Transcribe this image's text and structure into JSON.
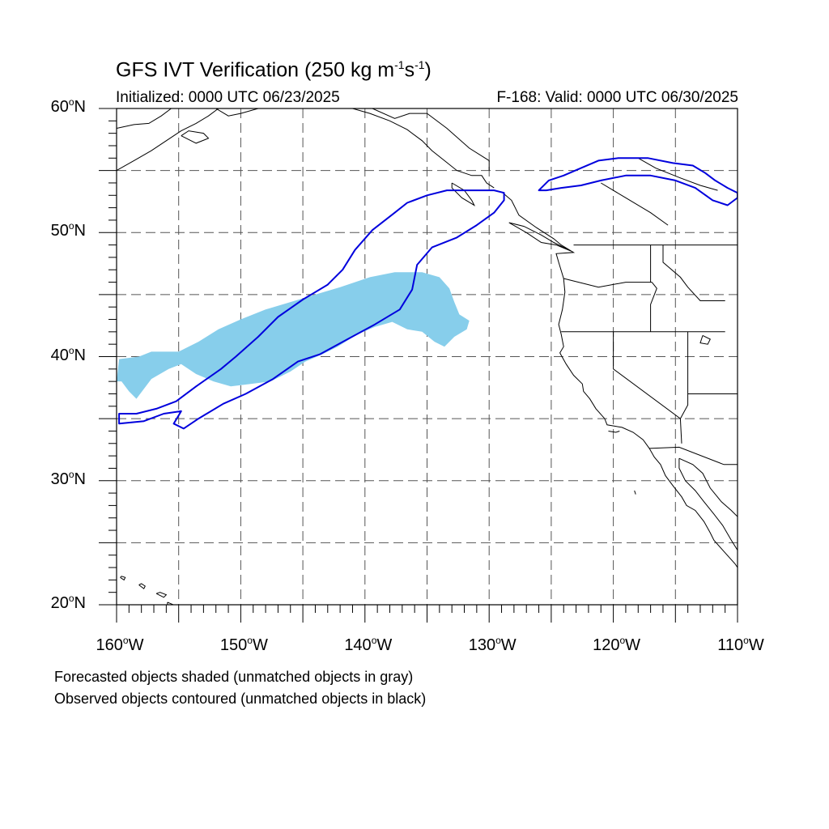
{
  "title": {
    "main": "GFS IVT Verification (250 kg m",
    "exp1": "-1",
    "mid": "s",
    "exp2": "-1",
    "end": ")"
  },
  "subtitle": {
    "left": "Initialized: 0000 UTC 06/23/2025",
    "right": "F-168: Valid: 0000 UTC 06/30/2025"
  },
  "map_extent": {
    "lon": [
      -160,
      -110
    ],
    "lat": [
      20,
      60
    ]
  },
  "lat_labels": [
    {
      "value": 60,
      "text": "60",
      "suffix": "N"
    },
    {
      "value": 50,
      "text": "50",
      "suffix": "N"
    },
    {
      "value": 40,
      "text": "40",
      "suffix": "N"
    },
    {
      "value": 30,
      "text": "30",
      "suffix": "N"
    },
    {
      "value": 20,
      "text": "20",
      "suffix": "N"
    }
  ],
  "lon_labels": [
    {
      "value": -160,
      "text": "160",
      "suffix": "W"
    },
    {
      "value": -150,
      "text": "150",
      "suffix": "W"
    },
    {
      "value": -140,
      "text": "140",
      "suffix": "W"
    },
    {
      "value": -130,
      "text": "130",
      "suffix": "W"
    },
    {
      "value": -120,
      "text": "120",
      "suffix": "W"
    },
    {
      "value": -110,
      "text": "110",
      "suffix": "W"
    }
  ],
  "grid": {
    "spacing_deg": 5,
    "style": "dashed"
  },
  "colors": {
    "forecast_fill": "#87ceeb",
    "observed_contour": "#0000dd",
    "coastline": "#000000"
  },
  "notes": {
    "line1": "Forecasted objects shaded (unmatched objects in gray)",
    "line2": "Observed objects contoured (unmatched objects in black)"
  },
  "chart_data": {
    "type": "map",
    "forecast_objects": [
      {
        "label": "forecast IVT object",
        "polygon": [
          [
            -160,
            38.0
          ],
          [
            -159.8,
            39.8
          ],
          [
            -158.2,
            40.0
          ],
          [
            -157.2,
            40.4
          ],
          [
            -155.0,
            40.4
          ],
          [
            -153.4,
            41.2
          ],
          [
            -151.8,
            42.2
          ],
          [
            -150.0,
            43.0
          ],
          [
            -148.0,
            43.8
          ],
          [
            -146.0,
            44.4
          ],
          [
            -144.0,
            45.0
          ],
          [
            -142.0,
            45.6
          ],
          [
            -139.6,
            46.4
          ],
          [
            -137.6,
            46.8
          ],
          [
            -135.4,
            46.8
          ],
          [
            -134.0,
            46.4
          ],
          [
            -133.2,
            45.5
          ],
          [
            -132.8,
            44.4
          ],
          [
            -132.4,
            43.4
          ],
          [
            -131.6,
            42.9
          ],
          [
            -131.8,
            42.2
          ],
          [
            -132.8,
            41.6
          ],
          [
            -133.6,
            40.8
          ],
          [
            -134.4,
            41.2
          ],
          [
            -135.4,
            42.0
          ],
          [
            -136.6,
            42.2
          ],
          [
            -137.8,
            42.8
          ],
          [
            -139.2,
            42.4
          ],
          [
            -140.6,
            41.8
          ],
          [
            -142.2,
            40.8
          ],
          [
            -143.4,
            40.2
          ],
          [
            -144.8,
            39.6
          ],
          [
            -146.0,
            38.8
          ],
          [
            -147.6,
            38.0
          ],
          [
            -149.2,
            37.8
          ],
          [
            -150.8,
            37.6
          ],
          [
            -152.2,
            38.0
          ],
          [
            -153.6,
            38.6
          ],
          [
            -154.8,
            39.4
          ],
          [
            -155.8,
            39.0
          ],
          [
            -157.2,
            38.2
          ],
          [
            -158.4,
            36.6
          ],
          [
            -159.0,
            37.2
          ],
          [
            -159.6,
            38.0
          ]
        ]
      }
    ],
    "observed_objects": [
      {
        "label": "observed IVT object (matched)",
        "polygon": [
          [
            -159.8,
            35.4
          ],
          [
            -158.4,
            35.4
          ],
          [
            -156.8,
            35.8
          ],
          [
            -155.2,
            36.4
          ],
          [
            -153.6,
            37.6
          ],
          [
            -151.6,
            39.0
          ],
          [
            -150.4,
            40.0
          ],
          [
            -148.6,
            41.6
          ],
          [
            -147.0,
            43.2
          ],
          [
            -145.0,
            44.6
          ],
          [
            -143.0,
            45.8
          ],
          [
            -141.8,
            47.0
          ],
          [
            -140.8,
            48.6
          ],
          [
            -139.4,
            50.2
          ],
          [
            -137.6,
            51.6
          ],
          [
            -136.6,
            52.4
          ],
          [
            -135.0,
            53.0
          ],
          [
            -133.4,
            53.4
          ],
          [
            -131.2,
            53.4
          ],
          [
            -129.6,
            53.4
          ],
          [
            -128.8,
            53.2
          ],
          [
            -128.8,
            52.6
          ],
          [
            -129.6,
            51.6
          ],
          [
            -131.0,
            50.6
          ],
          [
            -132.6,
            49.6
          ],
          [
            -134.6,
            48.8
          ],
          [
            -135.8,
            47.4
          ],
          [
            -136.2,
            45.4
          ],
          [
            -137.2,
            43.8
          ],
          [
            -139.2,
            42.6
          ],
          [
            -141.4,
            41.4
          ],
          [
            -143.6,
            40.2
          ],
          [
            -145.4,
            39.6
          ],
          [
            -147.4,
            38.2
          ],
          [
            -149.6,
            37.0
          ],
          [
            -151.4,
            36.2
          ],
          [
            -153.4,
            35.0
          ],
          [
            -154.6,
            34.2
          ],
          [
            -155.4,
            34.6
          ],
          [
            -154.8,
            35.6
          ],
          [
            -156.2,
            35.4
          ],
          [
            -157.8,
            34.8
          ],
          [
            -159.8,
            34.6
          ]
        ]
      },
      {
        "label": "observed IVT object (matched) over Canada",
        "polygon": [
          [
            -126.0,
            53.4
          ],
          [
            -125.2,
            54.2
          ],
          [
            -124.0,
            54.6
          ],
          [
            -122.6,
            55.2
          ],
          [
            -121.2,
            55.8
          ],
          [
            -119.6,
            56.0
          ],
          [
            -117.2,
            56.0
          ],
          [
            -115.2,
            55.6
          ],
          [
            -113.6,
            55.4
          ],
          [
            -112.6,
            54.8
          ],
          [
            -111.8,
            54.2
          ],
          [
            -110.8,
            53.6
          ],
          [
            -110.0,
            53.2
          ],
          [
            -110.0,
            52.8
          ],
          [
            -110.8,
            52.2
          ],
          [
            -112.0,
            52.6
          ],
          [
            -113.4,
            53.6
          ],
          [
            -115.0,
            54.2
          ],
          [
            -117.0,
            54.6
          ],
          [
            -119.0,
            54.6
          ],
          [
            -121.0,
            54.2
          ],
          [
            -122.6,
            53.8
          ],
          [
            -124.2,
            53.6
          ],
          [
            -125.4,
            53.4
          ]
        ]
      }
    ]
  }
}
